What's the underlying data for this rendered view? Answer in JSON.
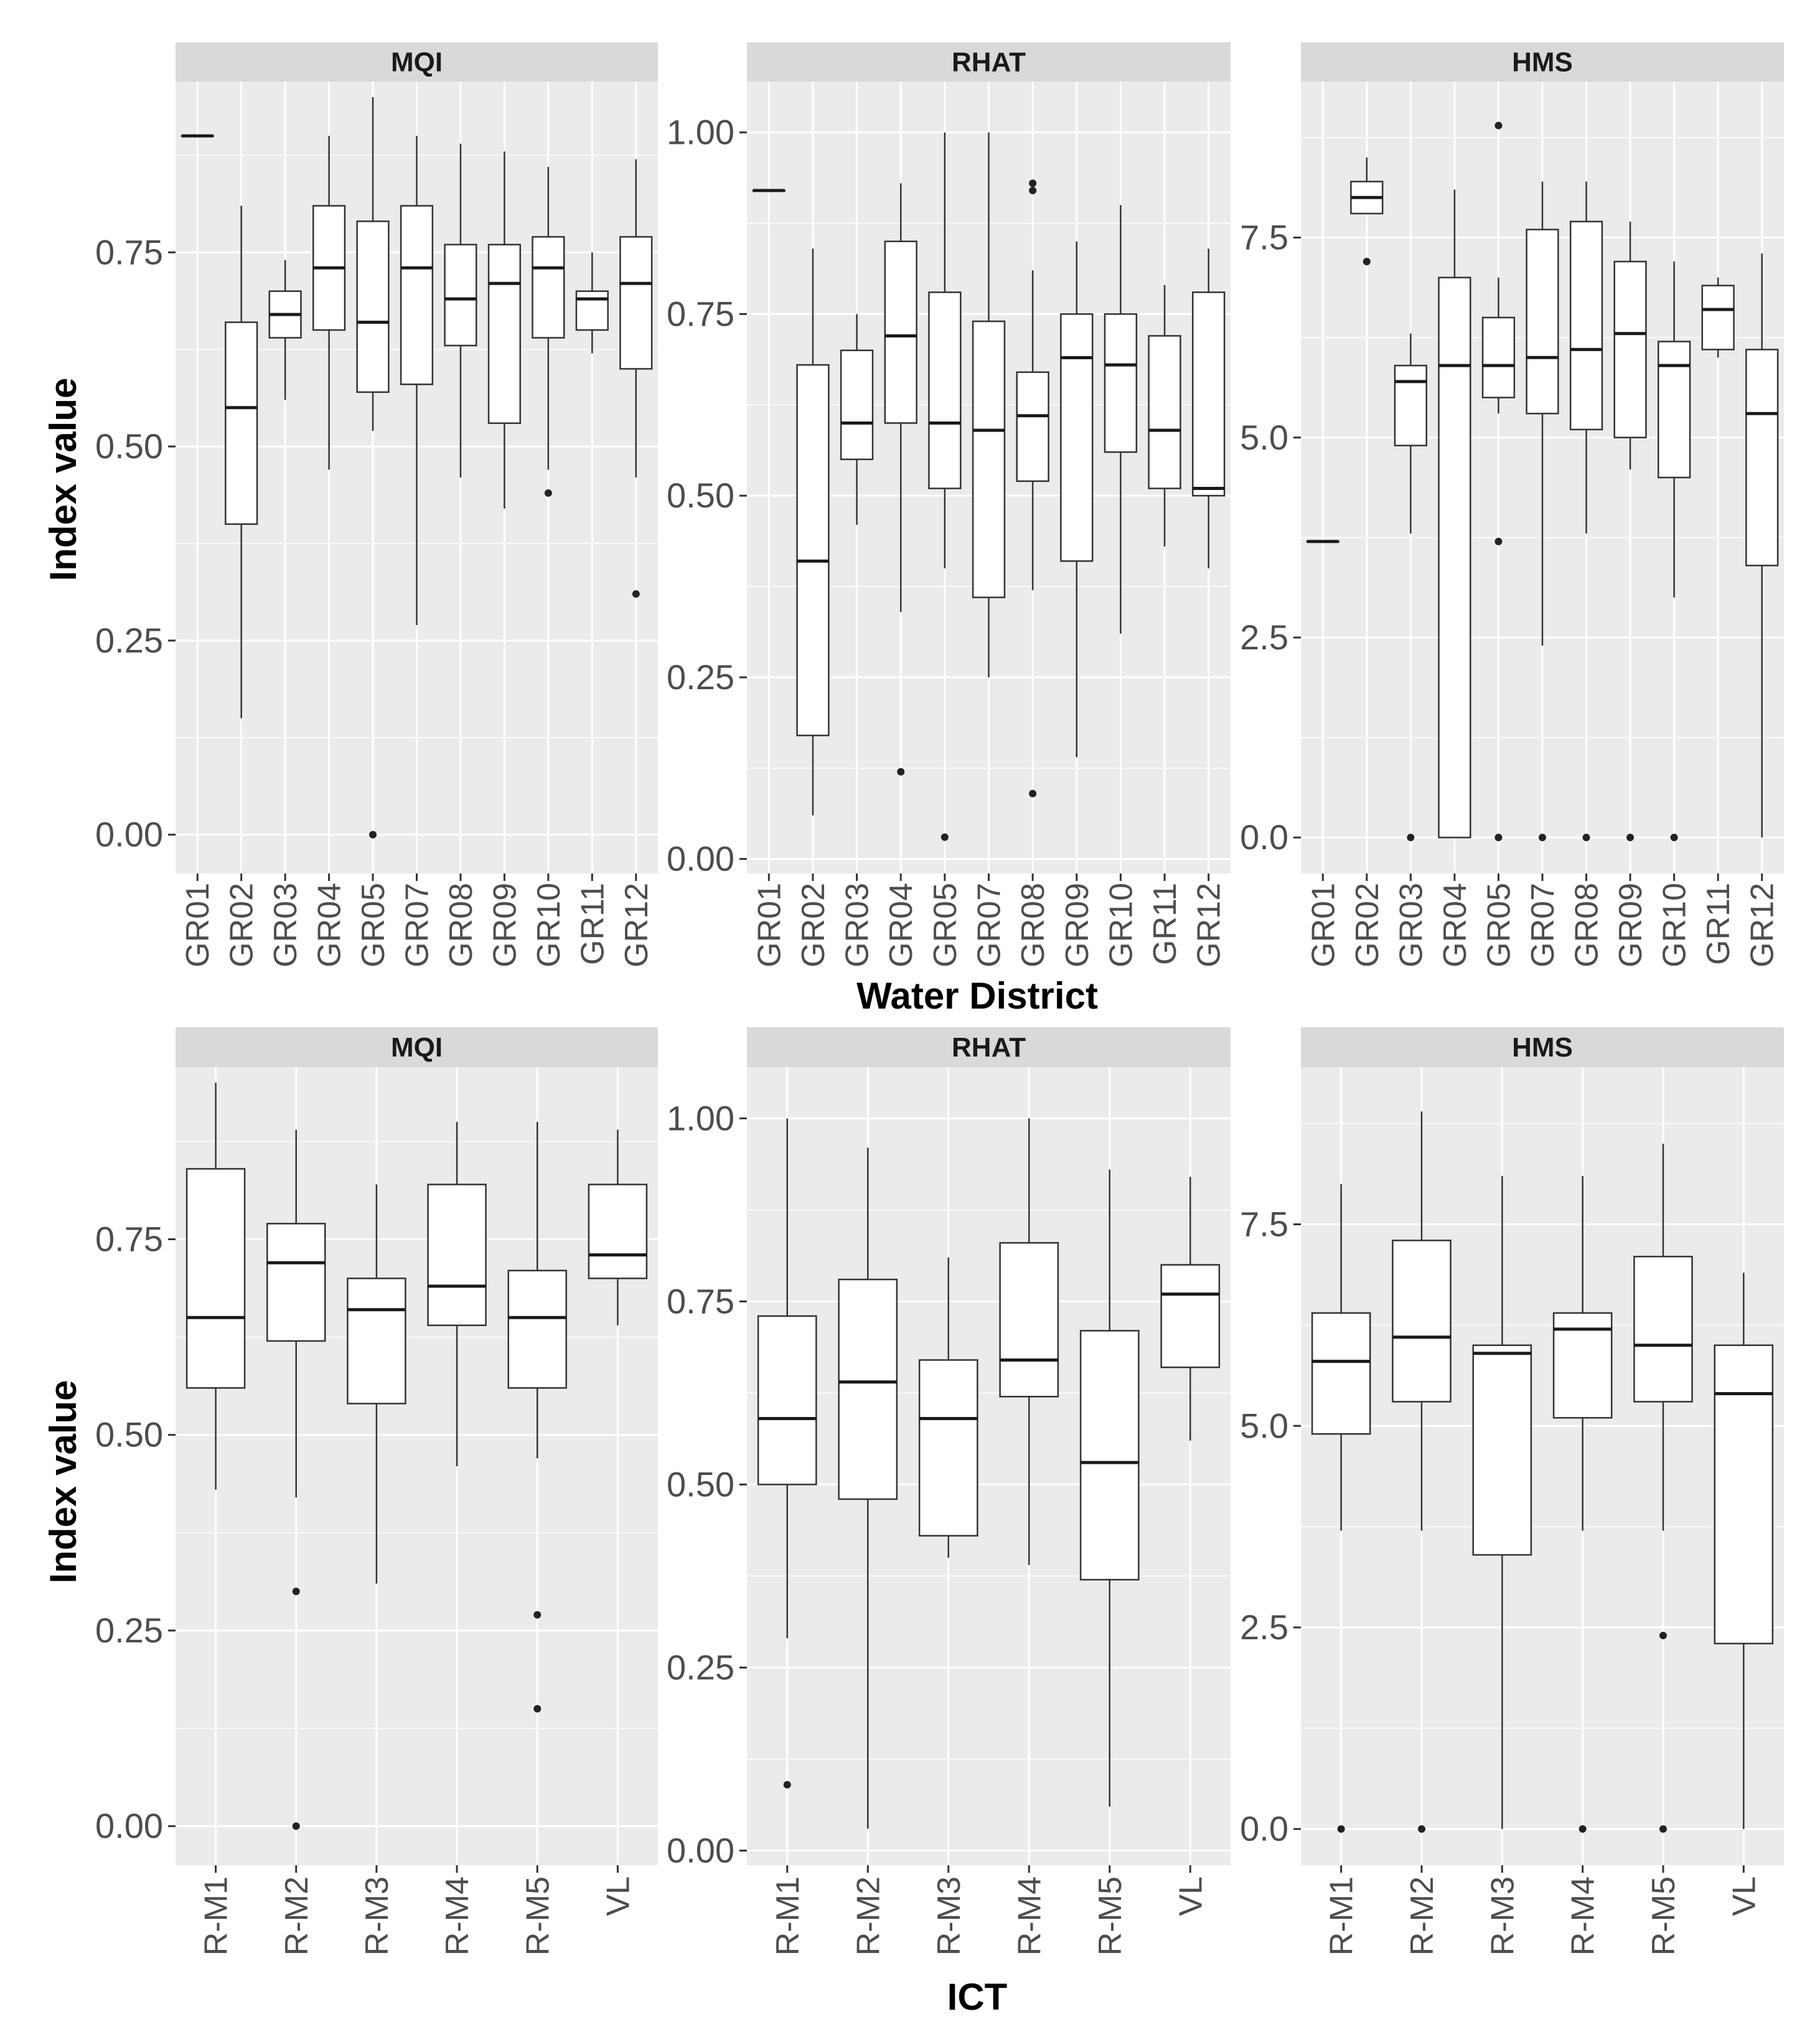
{
  "chart_data": [
    {
      "type": "boxplot",
      "row": "top",
      "title": "MQI",
      "xlabel": "Water District",
      "ylabel": "Index value",
      "ylim": [
        -0.05,
        0.97
      ],
      "yticks": [
        0.0,
        0.25,
        0.5,
        0.75
      ],
      "ytick_labels": [
        "0.00",
        "0.25",
        "0.50",
        "0.75"
      ],
      "categories": [
        "GR01",
        "GR02",
        "GR03",
        "GR04",
        "GR05",
        "GR07",
        "GR08",
        "GR09",
        "GR10",
        "GR11",
        "GR12"
      ],
      "boxes": [
        {
          "min": 0.9,
          "q1": 0.9,
          "median": 0.9,
          "q3": 0.9,
          "max": 0.9,
          "outliers": []
        },
        {
          "min": 0.15,
          "q1": 0.4,
          "median": 0.55,
          "q3": 0.66,
          "max": 0.81,
          "outliers": []
        },
        {
          "min": 0.56,
          "q1": 0.64,
          "median": 0.67,
          "q3": 0.7,
          "max": 0.74,
          "outliers": []
        },
        {
          "min": 0.47,
          "q1": 0.65,
          "median": 0.73,
          "q3": 0.81,
          "max": 0.9,
          "outliers": []
        },
        {
          "min": 0.52,
          "q1": 0.57,
          "median": 0.66,
          "q3": 0.79,
          "max": 0.95,
          "outliers": [
            0.0
          ]
        },
        {
          "min": 0.27,
          "q1": 0.58,
          "median": 0.73,
          "q3": 0.81,
          "max": 0.9,
          "outliers": []
        },
        {
          "min": 0.46,
          "q1": 0.63,
          "median": 0.69,
          "q3": 0.76,
          "max": 0.89,
          "outliers": []
        },
        {
          "min": 0.42,
          "q1": 0.53,
          "median": 0.71,
          "q3": 0.76,
          "max": 0.88,
          "outliers": []
        },
        {
          "min": 0.47,
          "q1": 0.64,
          "median": 0.73,
          "q3": 0.77,
          "max": 0.86,
          "outliers": [
            0.44
          ]
        },
        {
          "min": 0.62,
          "q1": 0.65,
          "median": 0.69,
          "q3": 0.7,
          "max": 0.75,
          "outliers": []
        },
        {
          "min": 0.46,
          "q1": 0.6,
          "median": 0.71,
          "q3": 0.77,
          "max": 0.87,
          "outliers": [
            0.31
          ]
        }
      ]
    },
    {
      "type": "boxplot",
      "row": "top",
      "title": "RHAT",
      "xlabel": "Water District",
      "ylabel": "Index value",
      "ylim": [
        -0.02,
        1.07
      ],
      "yticks": [
        0.0,
        0.25,
        0.5,
        0.75,
        1.0
      ],
      "ytick_labels": [
        "0.00",
        "0.25",
        "0.50",
        "0.75",
        "1.00"
      ],
      "categories": [
        "GR01",
        "GR02",
        "GR03",
        "GR04",
        "GR05",
        "GR07",
        "GR08",
        "GR09",
        "GR10",
        "GR11",
        "GR12"
      ],
      "boxes": [
        {
          "min": 0.92,
          "q1": 0.92,
          "median": 0.92,
          "q3": 0.92,
          "max": 0.92,
          "outliers": []
        },
        {
          "min": 0.06,
          "q1": 0.17,
          "median": 0.41,
          "q3": 0.68,
          "max": 0.84,
          "outliers": []
        },
        {
          "min": 0.46,
          "q1": 0.55,
          "median": 0.6,
          "q3": 0.7,
          "max": 0.75,
          "outliers": []
        },
        {
          "min": 0.34,
          "q1": 0.6,
          "median": 0.72,
          "q3": 0.85,
          "max": 0.93,
          "outliers": [
            0.12
          ]
        },
        {
          "min": 0.4,
          "q1": 0.51,
          "median": 0.6,
          "q3": 0.78,
          "max": 1.0,
          "outliers": [
            0.03
          ]
        },
        {
          "min": 0.25,
          "q1": 0.36,
          "median": 0.59,
          "q3": 0.74,
          "max": 1.0,
          "outliers": []
        },
        {
          "min": 0.37,
          "q1": 0.52,
          "median": 0.61,
          "q3": 0.67,
          "max": 0.81,
          "outliers": [
            0.09,
            0.92,
            0.93
          ]
        },
        {
          "min": 0.14,
          "q1": 0.41,
          "median": 0.69,
          "q3": 0.75,
          "max": 0.85,
          "outliers": []
        },
        {
          "min": 0.31,
          "q1": 0.56,
          "median": 0.68,
          "q3": 0.75,
          "max": 0.9,
          "outliers": []
        },
        {
          "min": 0.43,
          "q1": 0.51,
          "median": 0.59,
          "q3": 0.72,
          "max": 0.79,
          "outliers": []
        },
        {
          "min": 0.4,
          "q1": 0.5,
          "median": 0.51,
          "q3": 0.78,
          "max": 0.84,
          "outliers": []
        }
      ]
    },
    {
      "type": "boxplot",
      "row": "top",
      "title": "HMS",
      "xlabel": "Water District",
      "ylabel": "Index value",
      "ylim": [
        -0.45,
        9.45
      ],
      "yticks": [
        0.0,
        2.5,
        5.0,
        7.5
      ],
      "ytick_labels": [
        "0.0",
        "2.5",
        "5.0",
        "7.5"
      ],
      "categories": [
        "GR01",
        "GR02",
        "GR03",
        "GR04",
        "GR05",
        "GR07",
        "GR08",
        "GR09",
        "GR10",
        "GR11",
        "GR12"
      ],
      "boxes": [
        {
          "min": 3.7,
          "q1": 3.7,
          "median": 3.7,
          "q3": 3.7,
          "max": 3.7,
          "outliers": []
        },
        {
          "min": 7.8,
          "q1": 7.8,
          "median": 8.0,
          "q3": 8.2,
          "max": 8.5,
          "outliers": [
            7.2
          ]
        },
        {
          "min": 3.8,
          "q1": 4.9,
          "median": 5.7,
          "q3": 5.9,
          "max": 6.3,
          "outliers": [
            0.0
          ]
        },
        {
          "min": 0.0,
          "q1": 0.0,
          "median": 5.9,
          "q3": 7.0,
          "max": 8.1,
          "outliers": []
        },
        {
          "min": 5.3,
          "q1": 5.5,
          "median": 5.9,
          "q3": 6.5,
          "max": 7.0,
          "outliers": [
            0.0,
            3.7,
            8.9
          ]
        },
        {
          "min": 2.4,
          "q1": 5.3,
          "median": 6.0,
          "q3": 7.6,
          "max": 8.2,
          "outliers": [
            0.0
          ]
        },
        {
          "min": 3.8,
          "q1": 5.1,
          "median": 6.1,
          "q3": 7.7,
          "max": 8.2,
          "outliers": [
            0.0
          ]
        },
        {
          "min": 4.6,
          "q1": 5.0,
          "median": 6.3,
          "q3": 7.2,
          "max": 7.7,
          "outliers": [
            0.0
          ]
        },
        {
          "min": 3.0,
          "q1": 4.5,
          "median": 5.9,
          "q3": 6.2,
          "max": 7.2,
          "outliers": [
            0.0
          ]
        },
        {
          "min": 6.0,
          "q1": 6.1,
          "median": 6.6,
          "q3": 6.9,
          "max": 7.0,
          "outliers": []
        },
        {
          "min": 0.0,
          "q1": 3.4,
          "median": 5.3,
          "q3": 6.1,
          "max": 7.3,
          "outliers": []
        }
      ]
    },
    {
      "type": "boxplot",
      "row": "bottom",
      "title": "MQI",
      "xlabel": "ICT",
      "ylabel": "Index value",
      "ylim": [
        -0.05,
        0.97
      ],
      "yticks": [
        0.0,
        0.25,
        0.5,
        0.75
      ],
      "ytick_labels": [
        "0.00",
        "0.25",
        "0.50",
        "0.75"
      ],
      "categories": [
        "R-M1",
        "R-M2",
        "R-M3",
        "R-M4",
        "R-M5",
        "VL"
      ],
      "boxes": [
        {
          "min": 0.43,
          "q1": 0.56,
          "median": 0.65,
          "q3": 0.84,
          "max": 0.95,
          "outliers": []
        },
        {
          "min": 0.42,
          "q1": 0.62,
          "median": 0.72,
          "q3": 0.77,
          "max": 0.89,
          "outliers": [
            0.0,
            0.3
          ]
        },
        {
          "min": 0.31,
          "q1": 0.54,
          "median": 0.66,
          "q3": 0.7,
          "max": 0.82,
          "outliers": []
        },
        {
          "min": 0.46,
          "q1": 0.64,
          "median": 0.69,
          "q3": 0.82,
          "max": 0.9,
          "outliers": []
        },
        {
          "min": 0.47,
          "q1": 0.56,
          "median": 0.65,
          "q3": 0.71,
          "max": 0.9,
          "outliers": [
            0.15,
            0.27
          ]
        },
        {
          "min": 0.64,
          "q1": 0.7,
          "median": 0.73,
          "q3": 0.82,
          "max": 0.89,
          "outliers": []
        }
      ]
    },
    {
      "type": "boxplot",
      "row": "bottom",
      "title": "RHAT",
      "xlabel": "ICT",
      "ylabel": "Index value",
      "ylim": [
        -0.02,
        1.07
      ],
      "yticks": [
        0.0,
        0.25,
        0.5,
        0.75,
        1.0
      ],
      "ytick_labels": [
        "0.00",
        "0.25",
        "0.50",
        "0.75",
        "1.00"
      ],
      "categories": [
        "R-M1",
        "R-M2",
        "R-M3",
        "R-M4",
        "R-M5",
        "VL"
      ],
      "boxes": [
        {
          "min": 0.29,
          "q1": 0.5,
          "median": 0.59,
          "q3": 0.73,
          "max": 1.0,
          "outliers": [
            0.09
          ]
        },
        {
          "min": 0.03,
          "q1": 0.48,
          "median": 0.64,
          "q3": 0.78,
          "max": 0.96,
          "outliers": []
        },
        {
          "min": 0.4,
          "q1": 0.43,
          "median": 0.59,
          "q3": 0.67,
          "max": 0.81,
          "outliers": []
        },
        {
          "min": 0.39,
          "q1": 0.62,
          "median": 0.67,
          "q3": 0.83,
          "max": 1.0,
          "outliers": []
        },
        {
          "min": 0.06,
          "q1": 0.37,
          "median": 0.53,
          "q3": 0.71,
          "max": 0.93,
          "outliers": []
        },
        {
          "min": 0.56,
          "q1": 0.66,
          "median": 0.76,
          "q3": 0.8,
          "max": 0.92,
          "outliers": []
        }
      ]
    },
    {
      "type": "boxplot",
      "row": "bottom",
      "title": "HMS",
      "xlabel": "ICT",
      "ylabel": "Index value",
      "ylim": [
        -0.45,
        9.45
      ],
      "yticks": [
        0.0,
        2.5,
        5.0,
        7.5
      ],
      "ytick_labels": [
        "0.0",
        "2.5",
        "5.0",
        "7.5"
      ],
      "categories": [
        "R-M1",
        "R-M2",
        "R-M3",
        "R-M4",
        "R-M5",
        "VL"
      ],
      "boxes": [
        {
          "min": 3.7,
          "q1": 4.9,
          "median": 5.8,
          "q3": 6.4,
          "max": 8.0,
          "outliers": [
            0.0
          ]
        },
        {
          "min": 3.7,
          "q1": 5.3,
          "median": 6.1,
          "q3": 7.3,
          "max": 8.9,
          "outliers": [
            0.0
          ]
        },
        {
          "min": 0.0,
          "q1": 3.4,
          "median": 5.9,
          "q3": 6.0,
          "max": 8.1,
          "outliers": []
        },
        {
          "min": 3.7,
          "q1": 5.1,
          "median": 6.2,
          "q3": 6.4,
          "max": 8.1,
          "outliers": [
            0.0
          ]
        },
        {
          "min": 3.7,
          "q1": 5.3,
          "median": 6.0,
          "q3": 7.1,
          "max": 8.5,
          "outliers": [
            0.0,
            2.4
          ]
        },
        {
          "min": 0.0,
          "q1": 2.3,
          "median": 5.4,
          "q3": 6.0,
          "max": 6.9,
          "outliers": []
        }
      ]
    }
  ],
  "row_labels": {
    "top_xlabel": "Water District",
    "bottom_xlabel": "ICT",
    "ylabel": "Index value"
  }
}
